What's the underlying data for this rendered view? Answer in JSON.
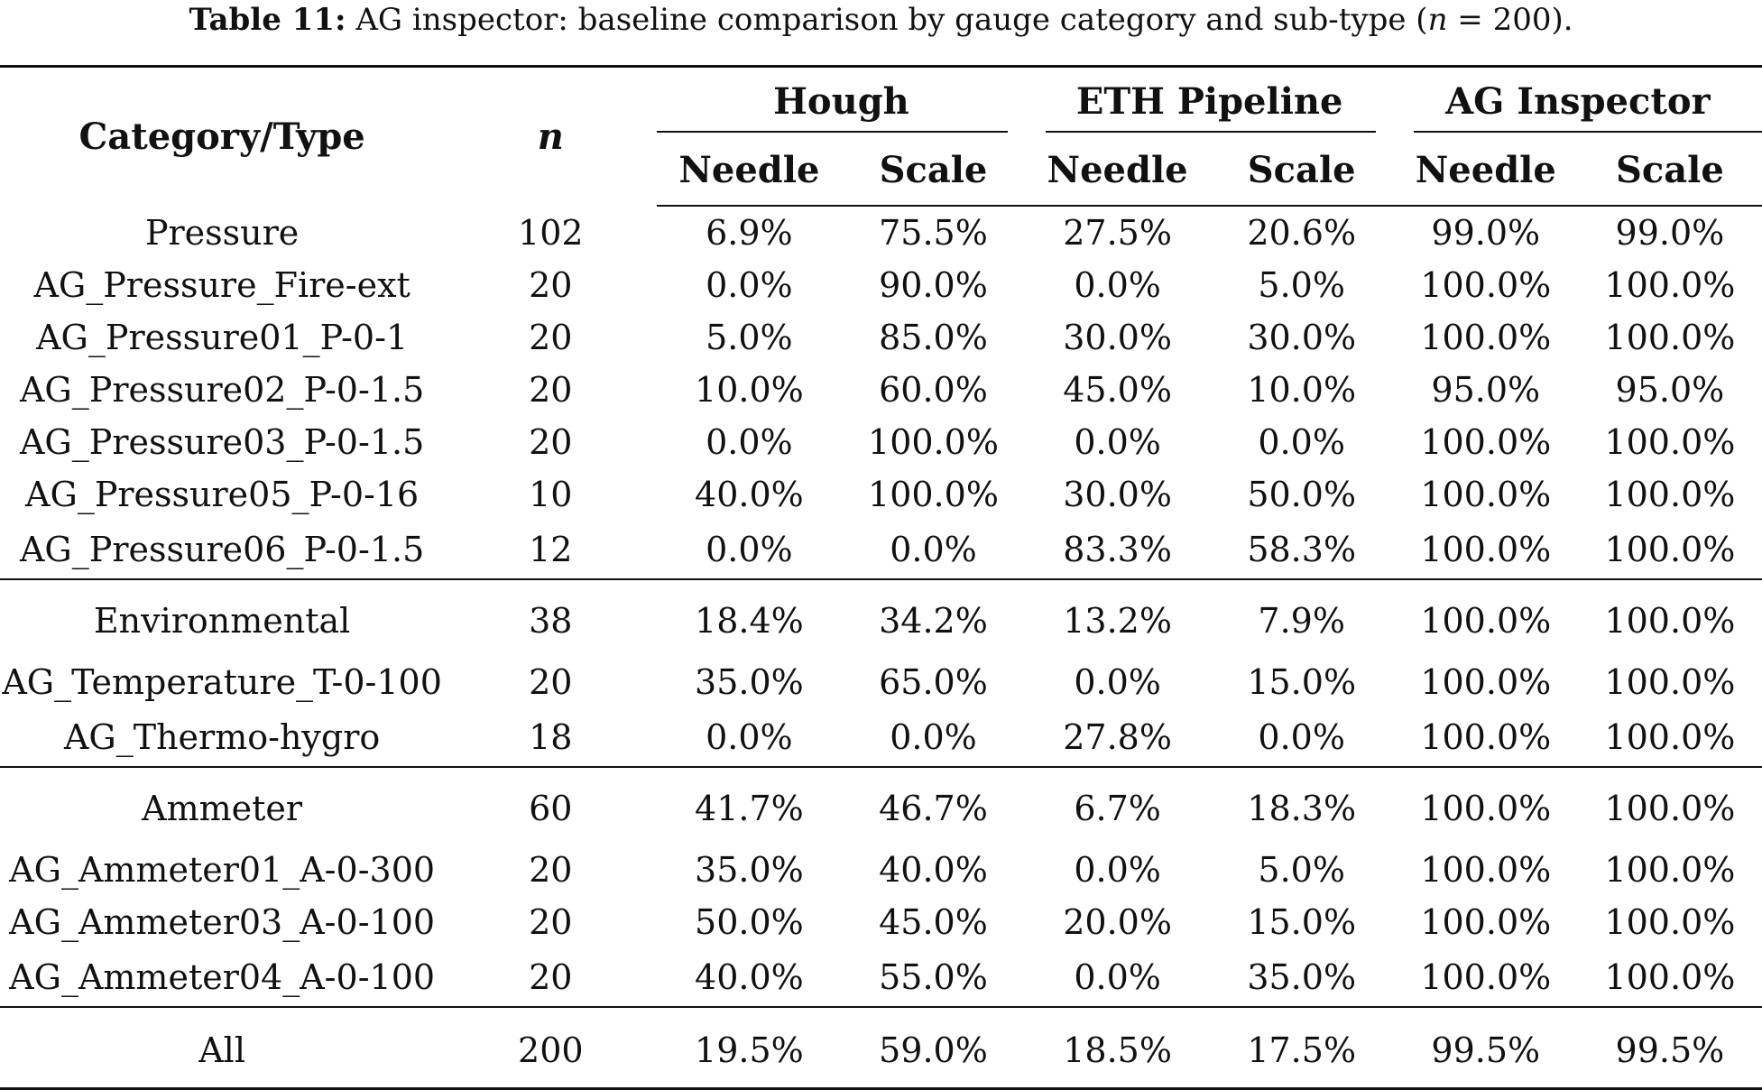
{
  "caption": {
    "label": "Table 11:",
    "text_before": "AG inspector: baseline comparison by gauge category and sub-type (",
    "n_symbol": "n",
    "text_after": " = 200)."
  },
  "table": {
    "header": {
      "category": "Category/Type",
      "n": "n",
      "groups": [
        "Hough",
        "ETH Pipeline",
        "AG Inspector"
      ],
      "subcols": [
        "Needle",
        "Scale"
      ]
    },
    "groups": [
      {
        "rows": [
          {
            "type": "Pressure",
            "n": "102",
            "values": [
              "6.9%",
              "75.5%",
              "27.5%",
              "20.6%",
              "99.0%",
              "99.0%"
            ]
          },
          {
            "type": "AG_Pressure_Fire-ext",
            "n": "20",
            "values": [
              "0.0%",
              "90.0%",
              "0.0%",
              "5.0%",
              "100.0%",
              "100.0%"
            ]
          },
          {
            "type": "AG_Pressure01_P-0-1",
            "n": "20",
            "values": [
              "5.0%",
              "85.0%",
              "30.0%",
              "30.0%",
              "100.0%",
              "100.0%"
            ]
          },
          {
            "type": "AG_Pressure02_P-0-1.5",
            "n": "20",
            "values": [
              "10.0%",
              "60.0%",
              "45.0%",
              "10.0%",
              "95.0%",
              "95.0%"
            ]
          },
          {
            "type": "AG_Pressure03_P-0-1.5",
            "n": "20",
            "values": [
              "0.0%",
              "100.0%",
              "0.0%",
              "0.0%",
              "100.0%",
              "100.0%"
            ]
          },
          {
            "type": "AG_Pressure05_P-0-16",
            "n": "10",
            "values": [
              "40.0%",
              "100.0%",
              "30.0%",
              "50.0%",
              "100.0%",
              "100.0%"
            ]
          },
          {
            "type": "AG_Pressure06_P-0-1.5",
            "n": "12",
            "values": [
              "0.0%",
              "0.0%",
              "83.3%",
              "58.3%",
              "100.0%",
              "100.0%"
            ]
          }
        ]
      },
      {
        "rows": [
          {
            "type": "Environmental",
            "n": "38",
            "values": [
              "18.4%",
              "34.2%",
              "13.2%",
              "7.9%",
              "100.0%",
              "100.0%"
            ]
          },
          {
            "type": "AG_Temperature_T-0-100",
            "n": "20",
            "values": [
              "35.0%",
              "65.0%",
              "0.0%",
              "15.0%",
              "100.0%",
              "100.0%"
            ]
          },
          {
            "type": "AG_Thermo-hygro",
            "n": "18",
            "values": [
              "0.0%",
              "0.0%",
              "27.8%",
              "0.0%",
              "100.0%",
              "100.0%"
            ]
          }
        ]
      },
      {
        "rows": [
          {
            "type": "Ammeter",
            "n": "60",
            "values": [
              "41.7%",
              "46.7%",
              "6.7%",
              "18.3%",
              "100.0%",
              "100.0%"
            ]
          },
          {
            "type": "AG_Ammeter01_A-0-300",
            "n": "20",
            "values": [
              "35.0%",
              "40.0%",
              "0.0%",
              "5.0%",
              "100.0%",
              "100.0%"
            ]
          },
          {
            "type": "AG_Ammeter03_A-0-100",
            "n": "20",
            "values": [
              "50.0%",
              "45.0%",
              "20.0%",
              "15.0%",
              "100.0%",
              "100.0%"
            ]
          },
          {
            "type": "AG_Ammeter04_A-0-100",
            "n": "20",
            "values": [
              "40.0%",
              "55.0%",
              "0.0%",
              "35.0%",
              "100.0%",
              "100.0%"
            ]
          }
        ]
      },
      {
        "rows": [
          {
            "type": "All",
            "n": "200",
            "values": [
              "19.5%",
              "59.0%",
              "18.5%",
              "17.5%",
              "99.5%",
              "99.5%"
            ]
          }
        ]
      }
    ]
  }
}
